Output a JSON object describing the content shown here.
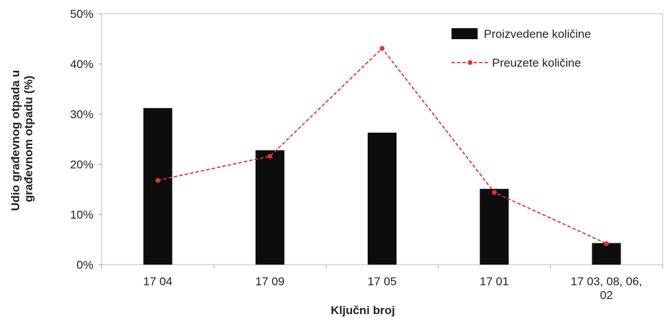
{
  "chart_data": {
    "type": "bar",
    "categories": [
      [
        "17 04"
      ],
      [
        "17 09"
      ],
      [
        "17 05"
      ],
      [
        "17 01"
      ],
      [
        "17 03, 08, 06,",
        "02"
      ]
    ],
    "series": [
      {
        "name": "Proizvedene količine",
        "type": "bar",
        "values": [
          31.2,
          22.8,
          26.3,
          15.1,
          4.3
        ],
        "color": "#0d0d0d"
      },
      {
        "name": "Preuzete količine",
        "type": "line",
        "values": [
          16.8,
          21.6,
          43.1,
          14.4,
          4.2
        ],
        "color": "#e8312f"
      }
    ],
    "xlabel": "Ključni broj",
    "ylabel": [
      "Udio građevnog otpada u",
      "građevnom otpadu (%)"
    ],
    "ylim": [
      0,
      50
    ],
    "yticks": [
      "0%",
      "10%",
      "20%",
      "30%",
      "40%",
      "50%"
    ],
    "legend_position": "top-right",
    "grid": false
  }
}
